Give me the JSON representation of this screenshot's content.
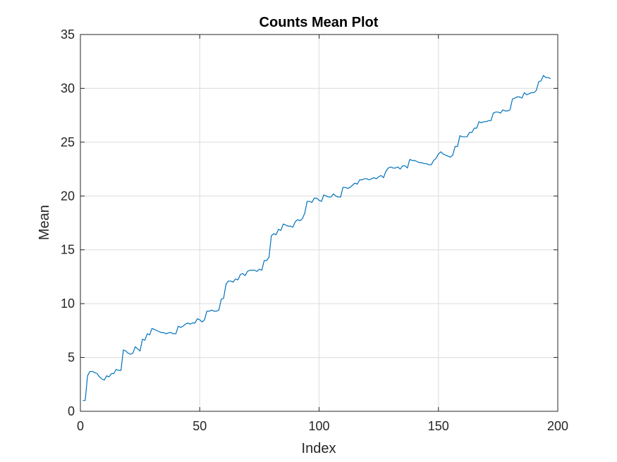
{
  "chart_data": {
    "type": "line",
    "title": "Counts Mean Plot",
    "xlabel": "Index",
    "ylabel": "Mean",
    "xlim": [
      0,
      200
    ],
    "ylim": [
      0,
      35
    ],
    "xticks": [
      0,
      50,
      100,
      150,
      200
    ],
    "yticks": [
      0,
      5,
      10,
      15,
      20,
      25,
      30,
      35
    ],
    "grid": true,
    "legend": "none",
    "colors": {
      "line": "#0072BD",
      "grid": "#dcdcdc",
      "axis": "#262626",
      "background": "#ffffff"
    },
    "series": [
      {
        "points": [
          [
            1,
            1.0
          ],
          [
            2,
            1.0
          ],
          [
            3,
            3.3
          ],
          [
            4,
            3.7
          ],
          [
            5,
            3.7
          ],
          [
            6,
            3.6
          ],
          [
            7,
            3.5
          ],
          [
            8,
            3.2
          ],
          [
            9,
            3.0
          ],
          [
            10,
            2.9
          ],
          [
            11,
            3.3
          ],
          [
            12,
            3.2
          ],
          [
            13,
            3.5
          ],
          [
            14,
            3.5
          ],
          [
            15,
            3.9
          ],
          [
            16,
            3.8
          ],
          [
            17,
            3.8
          ],
          [
            18,
            5.7
          ],
          [
            19,
            5.6
          ],
          [
            20,
            5.4
          ],
          [
            21,
            5.3
          ],
          [
            22,
            5.4
          ],
          [
            23,
            6.0
          ],
          [
            24,
            5.8
          ],
          [
            25,
            5.6
          ],
          [
            26,
            6.7
          ],
          [
            27,
            6.6
          ],
          [
            28,
            7.2
          ],
          [
            29,
            7.1
          ],
          [
            30,
            7.7
          ],
          [
            31,
            7.6
          ],
          [
            32,
            7.5
          ],
          [
            33,
            7.4
          ],
          [
            34,
            7.3
          ],
          [
            35,
            7.3
          ],
          [
            36,
            7.2
          ],
          [
            37,
            7.3
          ],
          [
            38,
            7.3
          ],
          [
            39,
            7.2
          ],
          [
            40,
            7.2
          ],
          [
            41,
            7.9
          ],
          [
            42,
            7.8
          ],
          [
            43,
            7.9
          ],
          [
            44,
            8.1
          ],
          [
            45,
            8.2
          ],
          [
            46,
            8.1
          ],
          [
            47,
            8.2
          ],
          [
            48,
            8.2
          ],
          [
            49,
            8.6
          ],
          [
            50,
            8.5
          ],
          [
            51,
            8.3
          ],
          [
            52,
            8.5
          ],
          [
            53,
            9.3
          ],
          [
            54,
            9.3
          ],
          [
            55,
            9.4
          ],
          [
            56,
            9.3
          ],
          [
            57,
            9.3
          ],
          [
            58,
            9.4
          ],
          [
            59,
            10.4
          ],
          [
            60,
            10.5
          ],
          [
            61,
            11.8
          ],
          [
            62,
            12.1
          ],
          [
            63,
            12.1
          ],
          [
            64,
            12.0
          ],
          [
            65,
            12.3
          ],
          [
            66,
            12.2
          ],
          [
            67,
            12.7
          ],
          [
            68,
            12.8
          ],
          [
            69,
            12.6
          ],
          [
            70,
            13.0
          ],
          [
            71,
            13.1
          ],
          [
            72,
            13.1
          ],
          [
            73,
            13.1
          ],
          [
            74,
            13.0
          ],
          [
            75,
            13.2
          ],
          [
            76,
            13.1
          ],
          [
            77,
            14.0
          ],
          [
            78,
            14.0
          ],
          [
            79,
            14.3
          ],
          [
            80,
            16.3
          ],
          [
            81,
            16.5
          ],
          [
            82,
            16.4
          ],
          [
            83,
            16.9
          ],
          [
            84,
            16.8
          ],
          [
            85,
            17.4
          ],
          [
            86,
            17.3
          ],
          [
            87,
            17.2
          ],
          [
            88,
            17.2
          ],
          [
            89,
            17.1
          ],
          [
            90,
            17.6
          ],
          [
            91,
            17.8
          ],
          [
            92,
            17.7
          ],
          [
            93,
            17.9
          ],
          [
            94,
            18.4
          ],
          [
            95,
            19.5
          ],
          [
            96,
            19.5
          ],
          [
            97,
            19.4
          ],
          [
            98,
            19.8
          ],
          [
            99,
            19.8
          ],
          [
            100,
            19.6
          ],
          [
            101,
            19.5
          ],
          [
            102,
            20.1
          ],
          [
            103,
            20.0
          ],
          [
            104,
            19.9
          ],
          [
            105,
            19.9
          ],
          [
            106,
            20.2
          ],
          [
            107,
            20.0
          ],
          [
            108,
            19.9
          ],
          [
            109,
            19.9
          ],
          [
            110,
            20.8
          ],
          [
            111,
            20.8
          ],
          [
            112,
            20.7
          ],
          [
            113,
            20.8
          ],
          [
            114,
            21.0
          ],
          [
            115,
            21.2
          ],
          [
            116,
            21.1
          ],
          [
            117,
            21.5
          ],
          [
            118,
            21.5
          ],
          [
            119,
            21.6
          ],
          [
            120,
            21.6
          ],
          [
            121,
            21.5
          ],
          [
            122,
            21.6
          ],
          [
            123,
            21.7
          ],
          [
            124,
            21.6
          ],
          [
            125,
            21.8
          ],
          [
            126,
            21.9
          ],
          [
            127,
            21.7
          ],
          [
            128,
            22.3
          ],
          [
            129,
            22.6
          ],
          [
            130,
            22.7
          ],
          [
            131,
            22.6
          ],
          [
            132,
            22.6
          ],
          [
            133,
            22.7
          ],
          [
            134,
            22.5
          ],
          [
            135,
            22.8
          ],
          [
            136,
            22.8
          ],
          [
            137,
            22.6
          ],
          [
            138,
            23.4
          ],
          [
            139,
            23.3
          ],
          [
            140,
            23.3
          ],
          [
            141,
            23.2
          ],
          [
            142,
            23.1
          ],
          [
            143,
            23.1
          ],
          [
            144,
            23.0
          ],
          [
            145,
            23.0
          ],
          [
            146,
            22.9
          ],
          [
            147,
            22.9
          ],
          [
            148,
            23.3
          ],
          [
            149,
            23.5
          ],
          [
            150,
            23.9
          ],
          [
            151,
            24.1
          ],
          [
            152,
            23.9
          ],
          [
            153,
            23.8
          ],
          [
            154,
            23.7
          ],
          [
            155,
            23.6
          ],
          [
            156,
            23.8
          ],
          [
            157,
            24.6
          ],
          [
            158,
            24.6
          ],
          [
            159,
            25.6
          ],
          [
            160,
            25.5
          ],
          [
            161,
            25.5
          ],
          [
            162,
            25.5
          ],
          [
            163,
            25.9
          ],
          [
            164,
            25.9
          ],
          [
            165,
            26.3
          ],
          [
            166,
            26.3
          ],
          [
            167,
            26.9
          ],
          [
            168,
            26.8
          ],
          [
            169,
            26.9
          ],
          [
            170,
            26.9
          ],
          [
            171,
            27.0
          ],
          [
            172,
            27.0
          ],
          [
            173,
            27.7
          ],
          [
            174,
            27.8
          ],
          [
            175,
            27.8
          ],
          [
            176,
            27.7
          ],
          [
            177,
            28.0
          ],
          [
            178,
            27.9
          ],
          [
            179,
            27.9
          ],
          [
            180,
            28.0
          ],
          [
            181,
            29.0
          ],
          [
            182,
            29.1
          ],
          [
            183,
            29.2
          ],
          [
            184,
            29.2
          ],
          [
            185,
            29.1
          ],
          [
            186,
            29.6
          ],
          [
            187,
            29.4
          ],
          [
            188,
            29.5
          ],
          [
            189,
            29.6
          ],
          [
            190,
            29.6
          ],
          [
            191,
            29.8
          ],
          [
            192,
            30.6
          ],
          [
            193,
            30.7
          ],
          [
            194,
            31.2
          ],
          [
            195,
            31.0
          ],
          [
            196,
            31.0
          ],
          [
            197,
            30.9
          ]
        ]
      }
    ]
  }
}
